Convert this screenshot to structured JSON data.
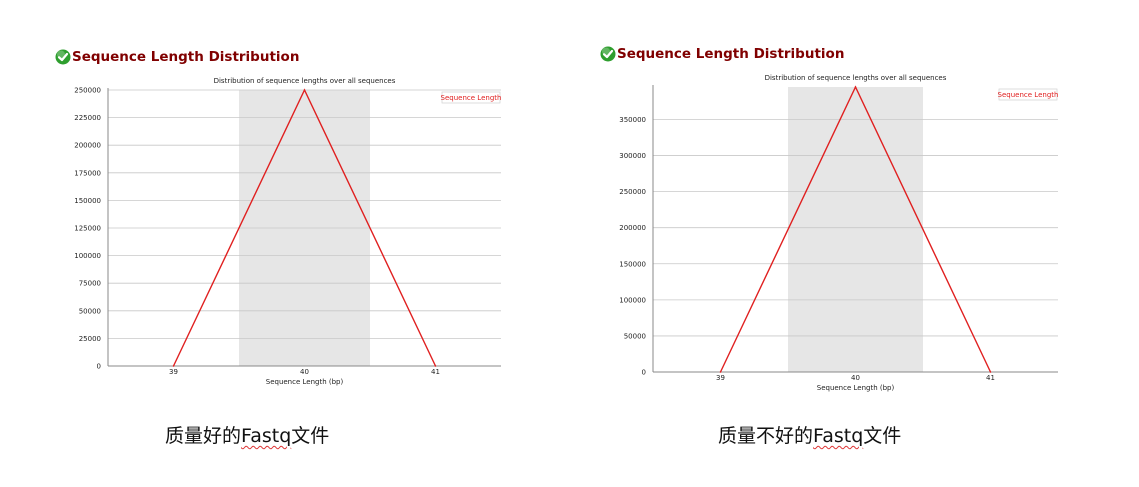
{
  "panels": [
    {
      "heading": "Sequence Length Distribution",
      "caption_pre": "质量好的",
      "caption_word": "Fastq",
      "caption_post": "文件"
    },
    {
      "heading": "Sequence Length Distribution",
      "caption_pre": "质量不好的",
      "caption_word": "Fastq",
      "caption_post": "文件"
    }
  ],
  "colors": {
    "heading": "#800000",
    "series": "#e02020",
    "band": "#e6e6e6",
    "check": "#2e9e2e"
  },
  "chart_data": [
    {
      "type": "line",
      "title": "Distribution of sequence lengths over all sequences",
      "xlabel": "Sequence Length (bp)",
      "ylabel": "",
      "categories": [
        "39",
        "40",
        "41"
      ],
      "series": [
        {
          "name": "Sequence Length",
          "values": [
            0,
            250000,
            0
          ]
        }
      ],
      "ylim": [
        0,
        250000
      ],
      "yticks": [
        0,
        25000,
        50000,
        75000,
        100000,
        125000,
        150000,
        175000,
        200000,
        225000,
        250000
      ],
      "highlight_band": "40",
      "grid": true,
      "legend": "top-right"
    },
    {
      "type": "line",
      "title": "Distribution of sequence lengths over all sequences",
      "xlabel": "Sequence Length (bp)",
      "ylabel": "",
      "categories": [
        "39",
        "40",
        "41"
      ],
      "series": [
        {
          "name": "Sequence Length",
          "values": [
            0,
            395000,
            0
          ]
        }
      ],
      "ylim": [
        0,
        395000
      ],
      "yticks": [
        0,
        50000,
        100000,
        150000,
        200000,
        250000,
        300000,
        350000
      ],
      "highlight_band": "40",
      "grid": true,
      "legend": "top-right"
    }
  ]
}
